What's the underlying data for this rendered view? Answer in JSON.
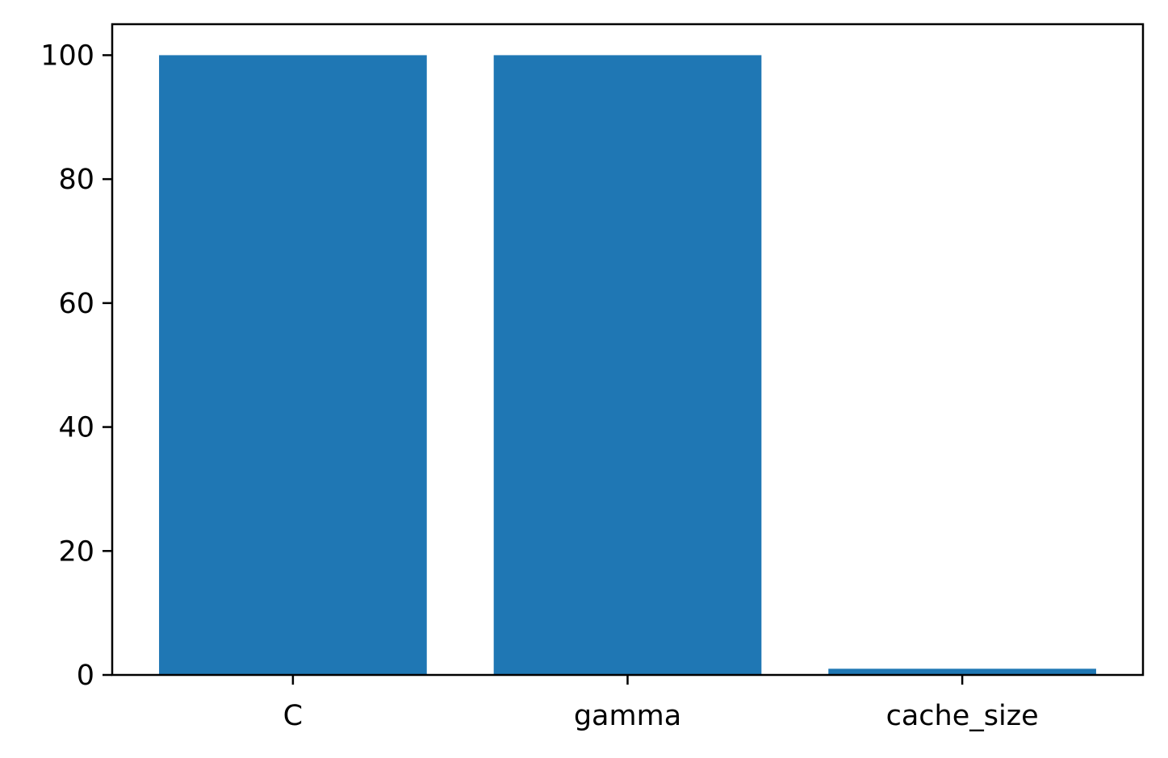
{
  "chart_data": {
    "type": "bar",
    "categories": [
      "C",
      "gamma",
      "cache_size"
    ],
    "values": [
      100,
      100,
      1
    ],
    "title": "",
    "xlabel": "",
    "ylabel": "",
    "ylim": [
      0,
      105
    ],
    "yticks": [
      0,
      20,
      40,
      60,
      80,
      100
    ],
    "grid": false,
    "bar_color": "#1f77b4"
  }
}
